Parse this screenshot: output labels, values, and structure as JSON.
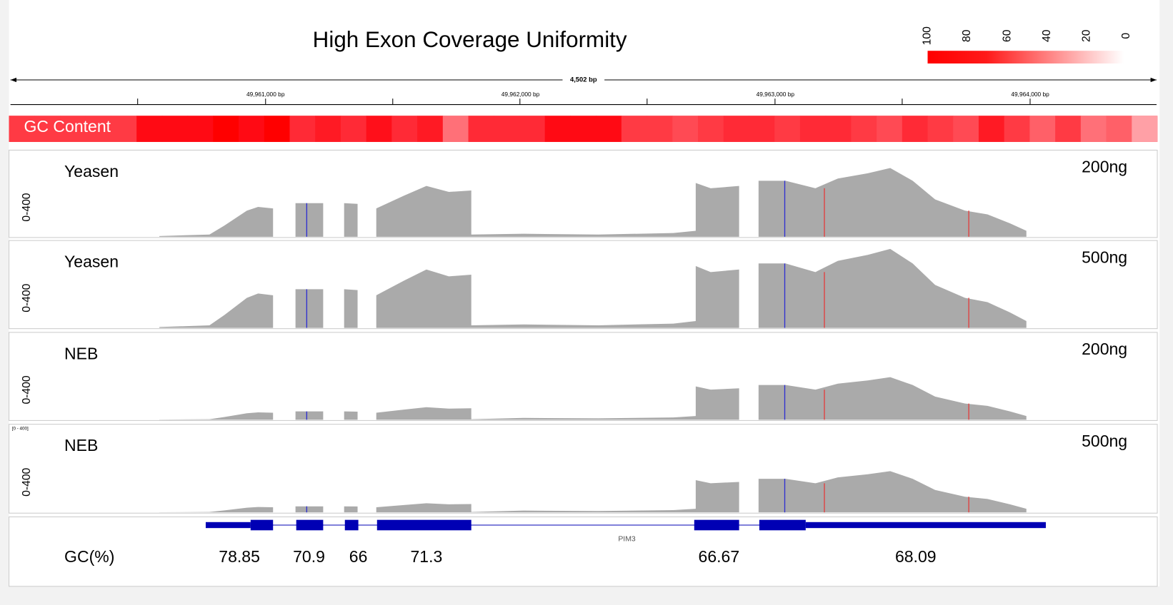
{
  "title": "High Exon Coverage Uniformity",
  "legend": {
    "ticks": [
      "100",
      "80",
      "60",
      "40",
      "20",
      "0"
    ]
  },
  "ruler": {
    "span": "4,502 bp",
    "ticks": [
      "49,961,000 bp",
      "49,962,000 bp",
      "49,963,000 bp",
      "49,964,000 bp"
    ]
  },
  "gc_track": {
    "label": "GC Content"
  },
  "tracks": [
    {
      "name": "Yeasen",
      "amount": "200ng",
      "range": "0-400"
    },
    {
      "name": "Yeasen",
      "amount": "500ng",
      "range": "0-400"
    },
    {
      "name": "NEB",
      "amount": "200ng",
      "range": "0-400"
    },
    {
      "name": "NEB",
      "amount": "500ng",
      "range": "0-400",
      "range_tag": "[0 - 400]"
    }
  ],
  "gene": {
    "name": "PIM3"
  },
  "gc": {
    "label": "GC(%)",
    "values": [
      78.85,
      70.9,
      66,
      71.3,
      66.67,
      68.09
    ]
  }
}
